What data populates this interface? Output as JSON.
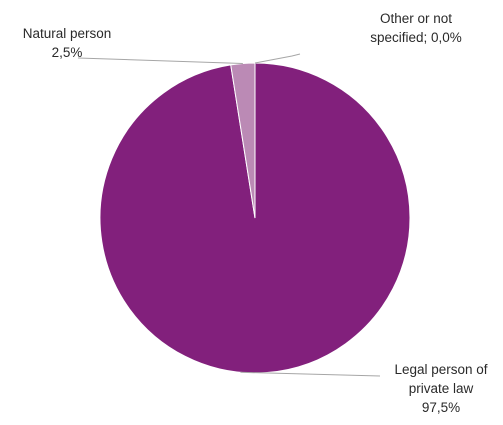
{
  "chart_data": {
    "type": "pie",
    "title": "",
    "colors": [
      "#82207c",
      "#bb8ab5",
      "#d9c3d6"
    ],
    "slices": [
      {
        "category": "Legal person of private law",
        "label_line1": "Legal person of",
        "label_line2": "private law",
        "value_label": "97,5%",
        "value": 97.5
      },
      {
        "category": "Natural person",
        "label_line1": "Natural person",
        "label_line2": "",
        "value_label": "2,5%",
        "value": 2.5
      },
      {
        "category": "Other or not specified",
        "label_line1": "Other or not",
        "label_line2": "specified; 0,0%",
        "value_label": "",
        "value": 0.0
      }
    ]
  }
}
